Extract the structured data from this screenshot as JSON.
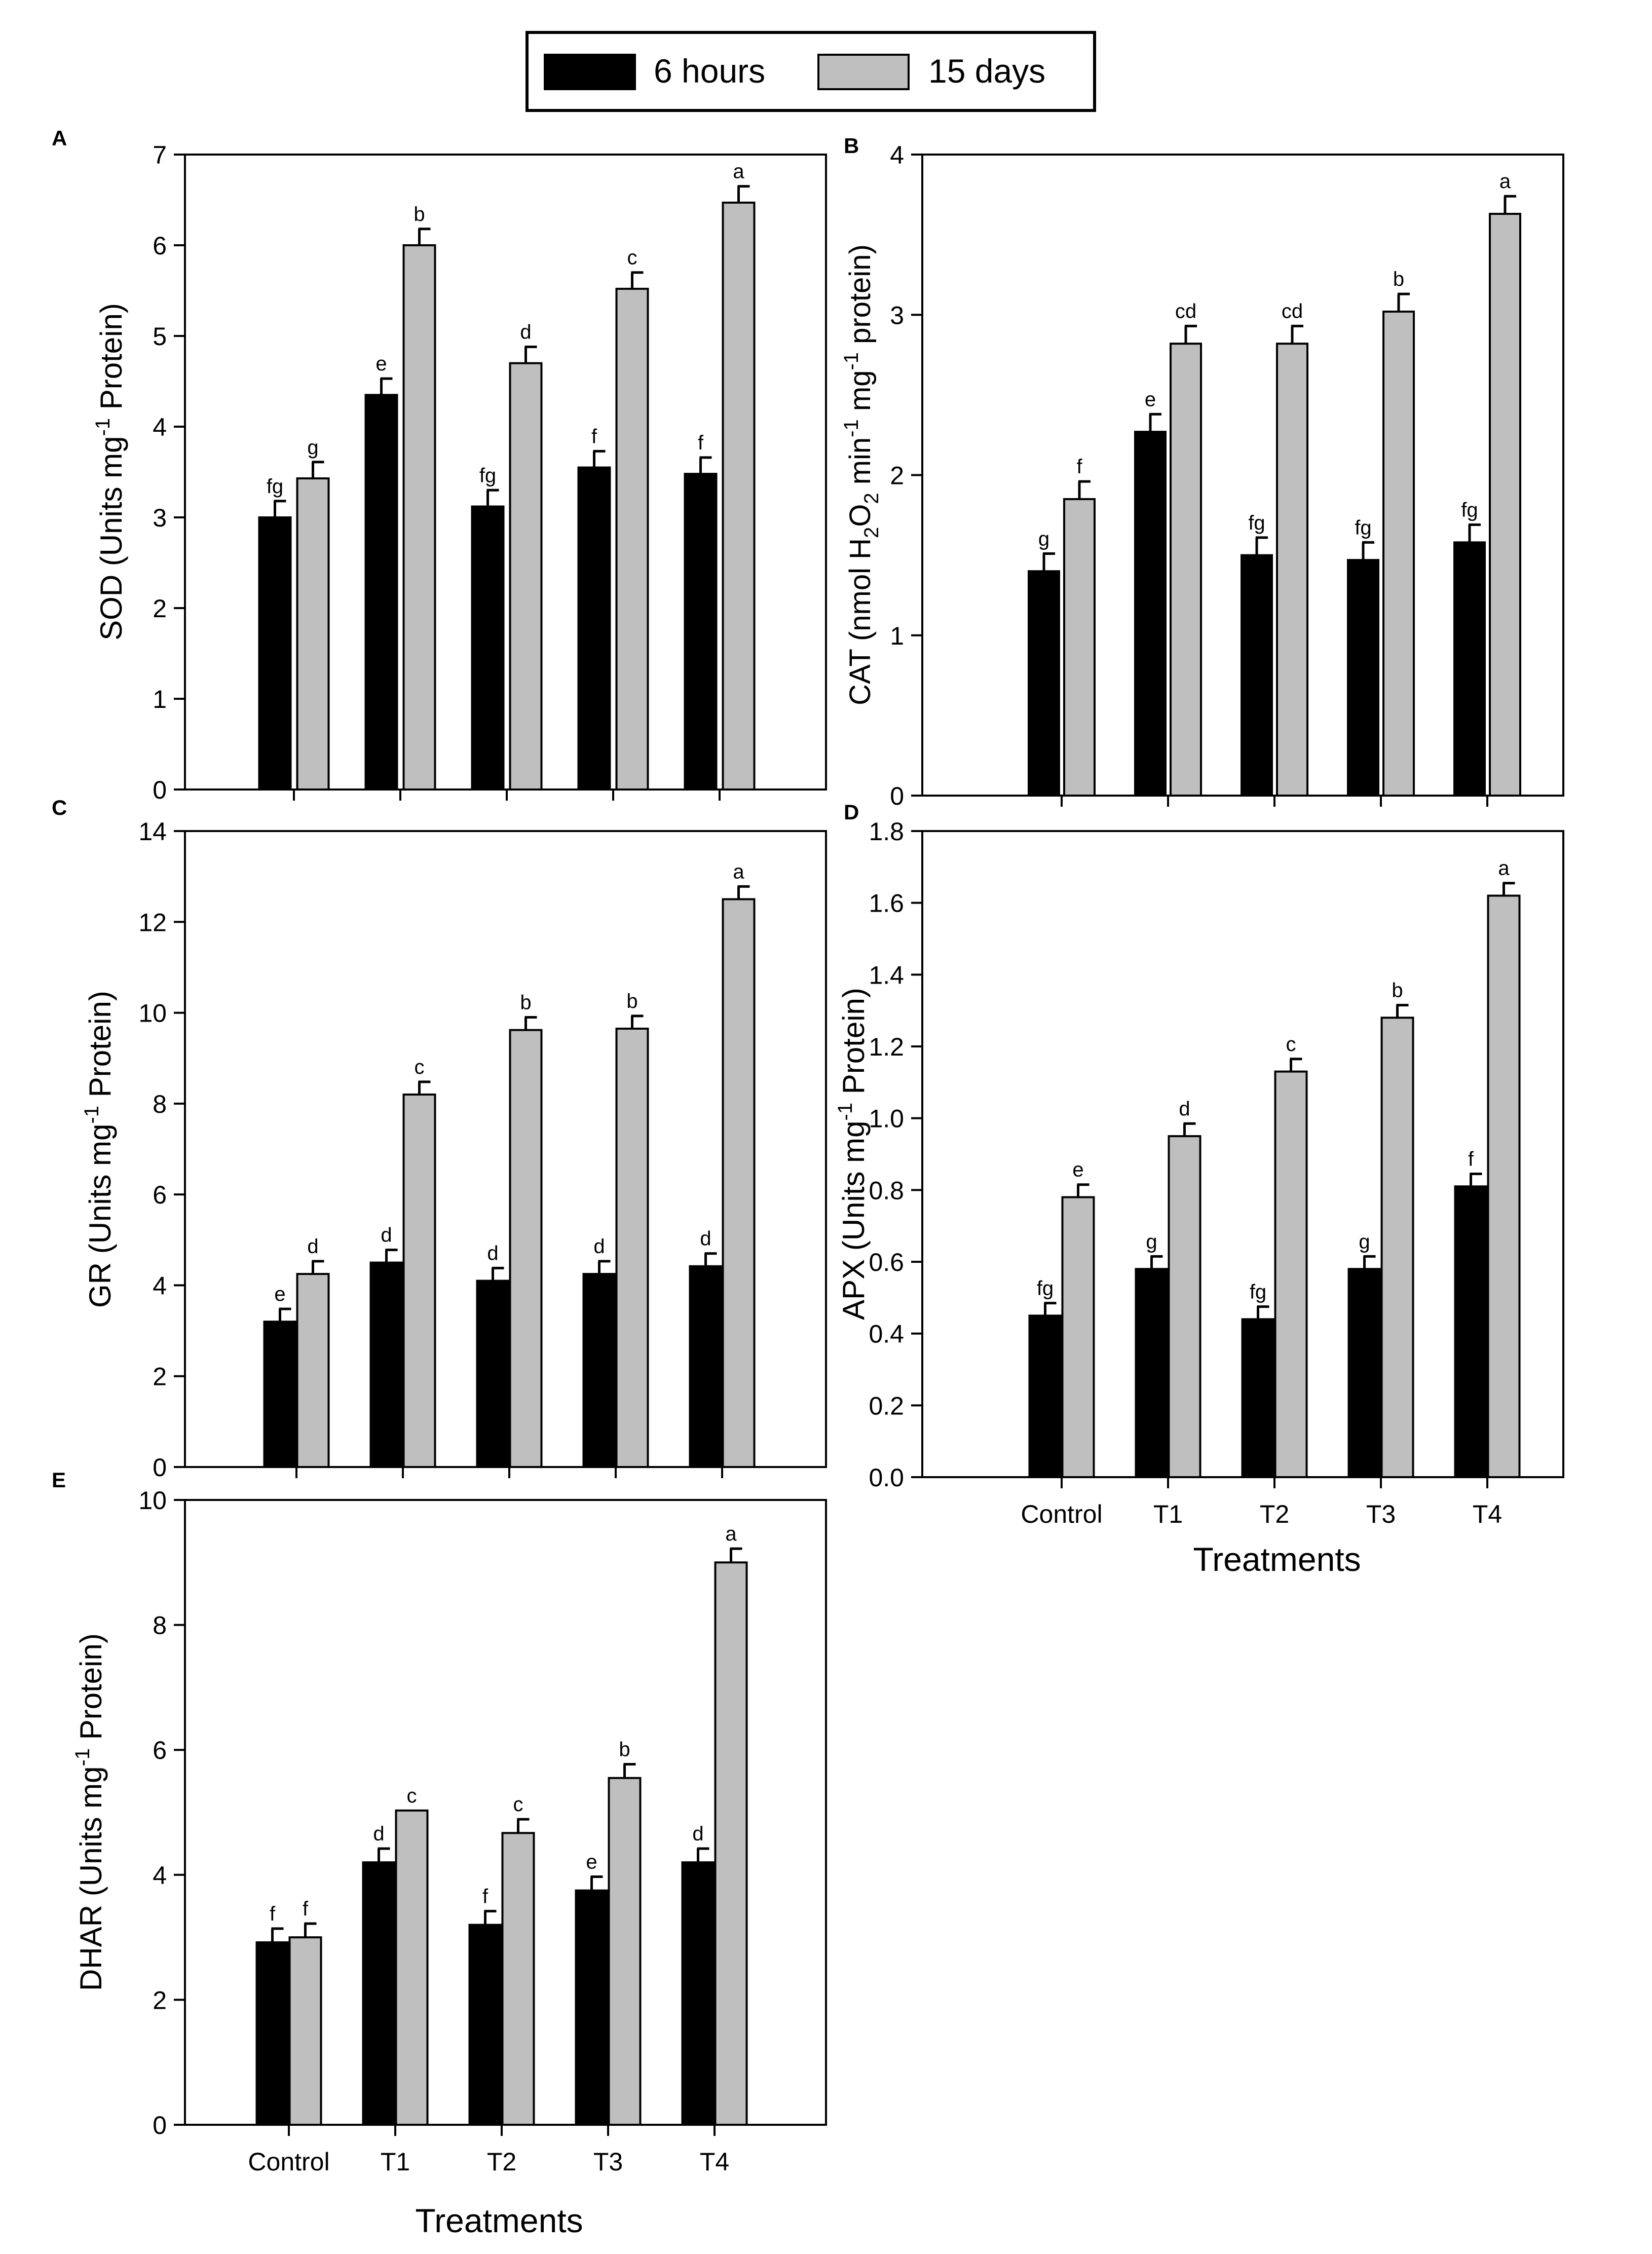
{
  "legend": {
    "series": [
      {
        "name": "6 hours",
        "color": "#000000"
      },
      {
        "name": "15 days",
        "color": "#bfbfbf"
      }
    ]
  },
  "chart_data": [
    {
      "panel": "A",
      "type": "bar",
      "ylabel": "SOD (Units mg",
      "ylabel_sup": "-1",
      "ylabel_tail": " Protein)",
      "xlabel": "",
      "show_category_labels": false,
      "categories": [
        "Control",
        "T1",
        "T2",
        "T3",
        "T4"
      ],
      "ylim": [
        0,
        7
      ],
      "yticks": [
        0,
        1,
        2,
        3,
        4,
        5,
        6,
        7
      ],
      "tick_decimals": 0,
      "series": [
        {
          "name": "6 hours",
          "values": [
            3.0,
            4.35,
            3.12,
            3.55,
            3.48
          ],
          "errors": [
            0.18,
            0.18,
            0.18,
            0.18,
            0.18
          ],
          "letters": [
            "fg",
            "e",
            "fg",
            "f",
            "f"
          ]
        },
        {
          "name": "15 days",
          "values": [
            3.43,
            6.0,
            4.7,
            5.52,
            6.47
          ],
          "errors": [
            0.18,
            0.18,
            0.18,
            0.18,
            0.18
          ],
          "letters": [
            "g",
            "b",
            "d",
            "c",
            "a"
          ]
        }
      ]
    },
    {
      "panel": "B",
      "type": "bar",
      "ylabel": "CAT (nmol H",
      "ylabel_sub1": "2",
      "ylabel_mid1": "O",
      "ylabel_sub2": "2",
      "ylabel_mid2": " min",
      "ylabel_sup1": "-1",
      "ylabel_mid3": " mg",
      "ylabel_sup2": "-1",
      "ylabel_tail": " protein)",
      "xlabel": "",
      "show_category_labels": false,
      "categories": [
        "Control",
        "T1",
        "T2",
        "T3",
        "T4"
      ],
      "ylim": [
        0,
        4
      ],
      "yticks": [
        0,
        1,
        2,
        3,
        4
      ],
      "tick_decimals": 0,
      "series": [
        {
          "name": "6 hours",
          "values": [
            1.4,
            2.27,
            1.5,
            1.47,
            1.58
          ],
          "errors": [
            0.11,
            0.11,
            0.11,
            0.11,
            0.11
          ],
          "letters": [
            "g",
            "e",
            "fg",
            "fg",
            "fg"
          ]
        },
        {
          "name": "15 days",
          "values": [
            1.85,
            2.82,
            2.82,
            3.02,
            3.63
          ],
          "errors": [
            0.11,
            0.11,
            0.11,
            0.11,
            0.11
          ],
          "letters": [
            "f",
            "cd",
            "cd",
            "b",
            "a"
          ]
        }
      ]
    },
    {
      "panel": "C",
      "type": "bar",
      "ylabel": "GR (Units mg",
      "ylabel_sup": "-1",
      "ylabel_tail": " Protein)",
      "xlabel": "",
      "show_category_labels": false,
      "categories": [
        "Control",
        "T1",
        "T2",
        "T3",
        "T4"
      ],
      "ylim": [
        0,
        14
      ],
      "yticks": [
        0,
        2,
        4,
        6,
        8,
        10,
        12,
        14
      ],
      "tick_decimals": 0,
      "series": [
        {
          "name": "6 hours",
          "values": [
            3.2,
            4.5,
            4.1,
            4.25,
            4.42
          ],
          "errors": [
            0.28,
            0.28,
            0.28,
            0.28,
            0.28
          ],
          "letters": [
            "e",
            "d",
            "d",
            "d",
            "d"
          ]
        },
        {
          "name": "15 days",
          "values": [
            4.25,
            8.2,
            9.62,
            9.65,
            12.5
          ],
          "errors": [
            0.28,
            0.28,
            0.28,
            0.28,
            0.28
          ],
          "letters": [
            "d",
            "c",
            "b",
            "b",
            "a"
          ]
        }
      ]
    },
    {
      "panel": "D",
      "type": "bar",
      "ylabel": "APX  (Units mg",
      "ylabel_sup": "-1",
      "ylabel_tail": " Protein)",
      "xlabel": "Treatments",
      "show_category_labels": true,
      "categories": [
        "Control",
        "T1",
        "T2",
        "T3",
        "T4"
      ],
      "ylim": [
        0,
        1.8
      ],
      "yticks": [
        0,
        0.2,
        0.4,
        0.6,
        0.8,
        1.0,
        1.2,
        1.4,
        1.6,
        1.8
      ],
      "tick_decimals": 1,
      "series": [
        {
          "name": "6 hours",
          "values": [
            0.45,
            0.58,
            0.44,
            0.58,
            0.81
          ],
          "errors": [
            0.035,
            0.035,
            0.035,
            0.035,
            0.035
          ],
          "letters": [
            "fg",
            "g",
            "fg",
            "g",
            "f"
          ]
        },
        {
          "name": "15 days",
          "values": [
            0.78,
            0.95,
            1.13,
            1.28,
            1.62
          ],
          "errors": [
            0.035,
            0.035,
            0.035,
            0.035,
            0.035
          ],
          "letters": [
            "e",
            "d",
            "c",
            "b",
            "a"
          ]
        }
      ]
    },
    {
      "panel": "E",
      "type": "bar",
      "ylabel": "DHAR (Units mg",
      "ylabel_sup": "-1",
      "ylabel_tail": " Protein)",
      "xlabel": "Treatments",
      "show_category_labels": true,
      "categories": [
        "Control",
        "T1",
        "T2",
        "T3",
        "T4"
      ],
      "ylim": [
        0,
        10
      ],
      "yticks": [
        0,
        2,
        4,
        6,
        8,
        10
      ],
      "tick_decimals": 0,
      "series": [
        {
          "name": "6 hours",
          "values": [
            2.92,
            4.2,
            3.2,
            3.75,
            4.2
          ],
          "errors": [
            0.22,
            0.22,
            0.22,
            0.22,
            0.22
          ],
          "letters": [
            "f",
            "d",
            "f",
            "e",
            "d"
          ]
        },
        {
          "name": "15 days",
          "values": [
            3.0,
            5.03,
            4.67,
            5.55,
            9.0
          ],
          "errors": [
            0.22,
            0.0,
            0.22,
            0.22,
            0.22
          ],
          "letters": [
            "f",
            "c",
            "c",
            "b",
            "a"
          ]
        }
      ]
    }
  ]
}
